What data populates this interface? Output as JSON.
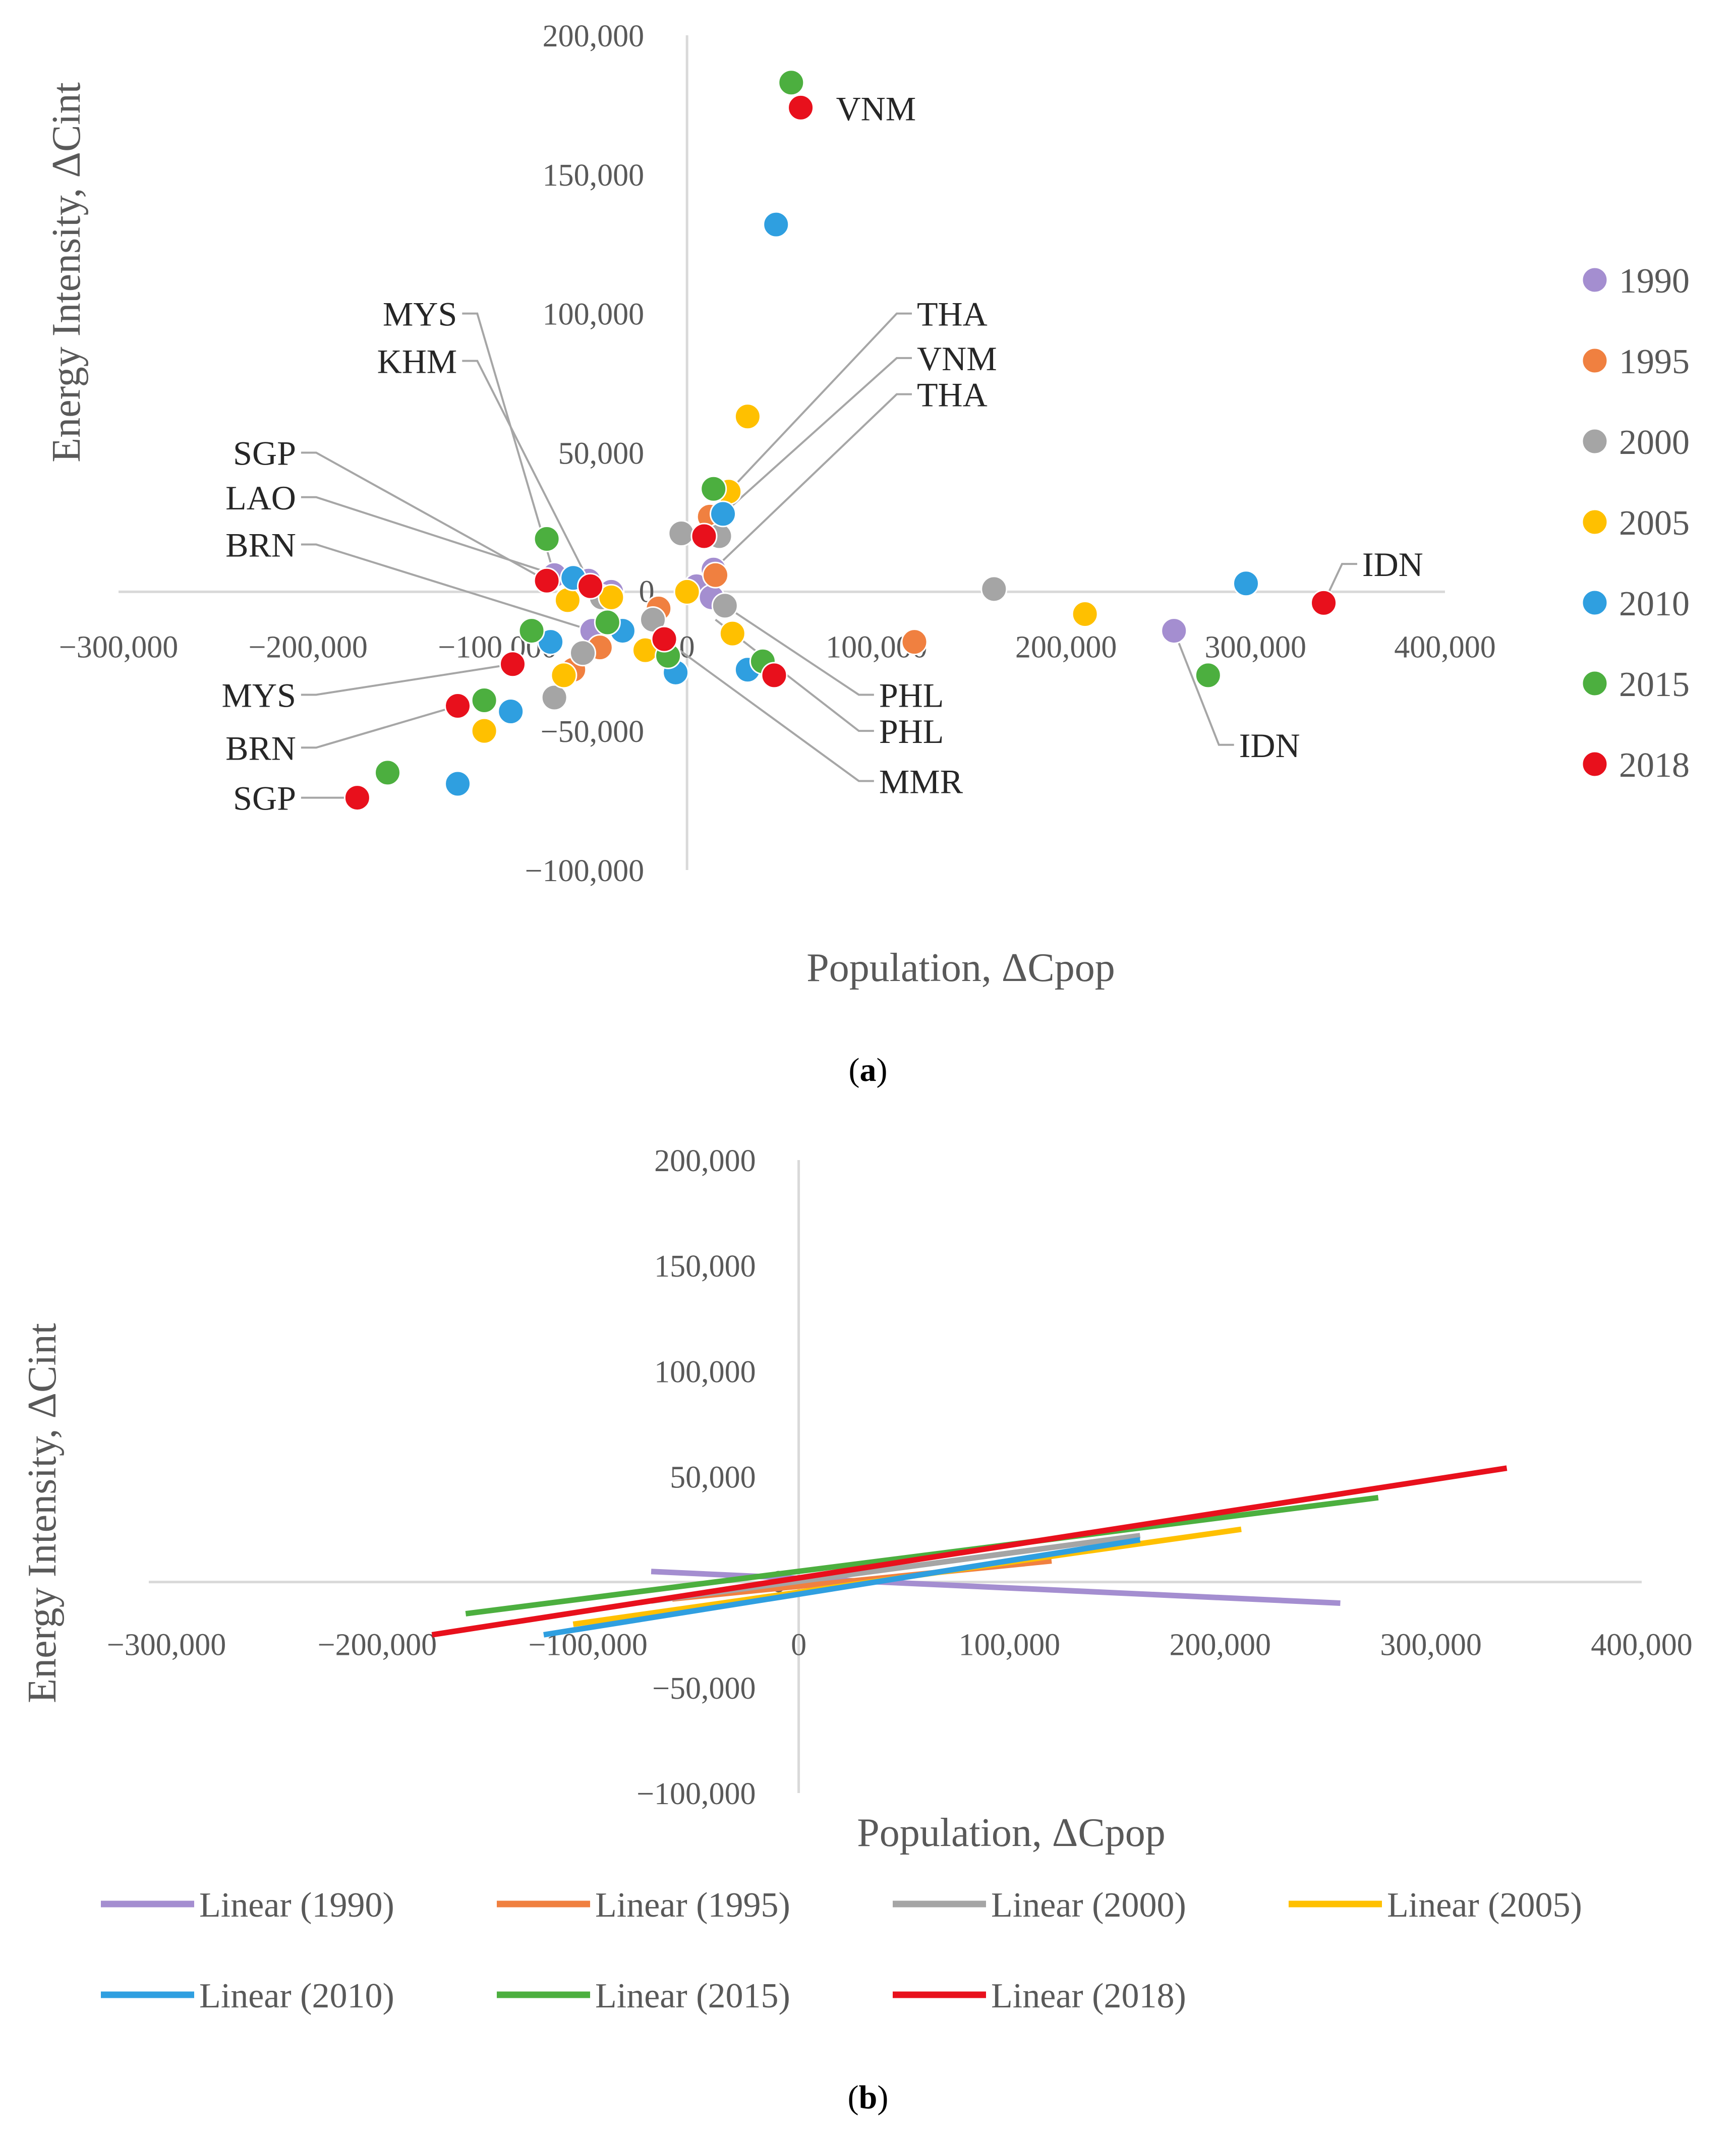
{
  "colors": {
    "1990": "#a48ed0",
    "1995": "#f08040",
    "2000": "#a5a5a5",
    "2005": "#ffc000",
    "2010": "#2f9fe0",
    "2015": "#4caf3f",
    "2018": "#e8101c",
    "axis": "#d9d9d9",
    "leader": "#a6a6a6"
  },
  "chart_data": [
    {
      "type": "scatter",
      "panel_label": "a",
      "xlabel": "Population, ΔCpop",
      "ylabel": "Energy Intensity, ΔCint",
      "xlim": [
        -300000,
        400000
      ],
      "ylim": [
        -100000,
        200000
      ],
      "x_ticks": [
        {
          "value": -300000,
          "label": "−300,000"
        },
        {
          "value": -200000,
          "label": "−200,000"
        },
        {
          "value": -100000,
          "label": "−100,000"
        },
        {
          "value": 0,
          "label": "0"
        },
        {
          "value": 100000,
          "label": "100,000"
        },
        {
          "value": 200000,
          "label": "200,000"
        },
        {
          "value": 300000,
          "label": "300,000"
        },
        {
          "value": 400000,
          "label": "400,000"
        }
      ],
      "y_ticks": [
        {
          "value": 200000,
          "label": "200,000"
        },
        {
          "value": 150000,
          "label": "150,000"
        },
        {
          "value": 100000,
          "label": "100,000"
        },
        {
          "value": 50000,
          "label": "50,000"
        },
        {
          "value": 0,
          "label": "0"
        },
        {
          "value": -50000,
          "label": "−50,000"
        },
        {
          "value": -100000,
          "label": "−100,000"
        }
      ],
      "legend": [
        "1990",
        "1995",
        "2000",
        "2005",
        "2010",
        "2015",
        "2018"
      ],
      "series": [
        {
          "name": "1990",
          "points": [
            [
              -70000,
              6000
            ],
            [
              -52000,
              4000
            ],
            [
              -40000,
              0
            ],
            [
              -50000,
              -14000
            ],
            [
              5000,
              2000
            ],
            [
              13000,
              -2000
            ],
            [
              14000,
              8000
            ],
            [
              257000,
              -14000
            ]
          ]
        },
        {
          "name": "1995",
          "points": [
            [
              -60000,
              -28000
            ],
            [
              -46000,
              -20000
            ],
            [
              -15000,
              -6000
            ],
            [
              12000,
              27000
            ],
            [
              15000,
              6000
            ],
            [
              120000,
              -18000
            ]
          ]
        },
        {
          "name": "2000",
          "points": [
            [
              -55000,
              -22000
            ],
            [
              -70000,
              -38000
            ],
            [
              -45000,
              -2000
            ],
            [
              -18000,
              -10000
            ],
            [
              -3000,
              21000
            ],
            [
              17000,
              20000
            ],
            [
              20000,
              -5000
            ],
            [
              162000,
              1000
            ]
          ]
        },
        {
          "name": "2005",
          "points": [
            [
              -63000,
              -3000
            ],
            [
              -65000,
              -30000
            ],
            [
              -107000,
              -50000
            ],
            [
              -40000,
              -2000
            ],
            [
              -22000,
              -21000
            ],
            [
              0,
              0
            ],
            [
              24000,
              -15000
            ],
            [
              32000,
              63000
            ],
            [
              22000,
              36000
            ],
            [
              210000,
              -8000
            ]
          ]
        },
        {
          "name": "2010",
          "points": [
            [
              -60000,
              5000
            ],
            [
              -72000,
              -18000
            ],
            [
              -34000,
              -14000
            ],
            [
              -6000,
              -29000
            ],
            [
              32000,
              -28000
            ],
            [
              19000,
              28000
            ],
            [
              -93000,
              -43000
            ],
            [
              -121000,
              -69000
            ],
            [
              47000,
              132000
            ],
            [
              295000,
              3000
            ]
          ]
        },
        {
          "name": "2015",
          "points": [
            [
              -74000,
              19000
            ],
            [
              -82000,
              -14000
            ],
            [
              -42000,
              -11000
            ],
            [
              -10000,
              -23000
            ],
            [
              40000,
              -25000
            ],
            [
              14000,
              37000
            ],
            [
              -107000,
              -39000
            ],
            [
              -158000,
              -65000
            ],
            [
              55000,
              183000
            ],
            [
              275000,
              -30000
            ]
          ]
        },
        {
          "name": "2018",
          "points": [
            [
              -74000,
              4000
            ],
            [
              -51000,
              2000
            ],
            [
              -12000,
              -17000
            ],
            [
              46000,
              -30000
            ],
            [
              9000,
              20000
            ],
            [
              -92000,
              -26000
            ],
            [
              -121000,
              -41000
            ],
            [
              -174000,
              -74000
            ],
            [
              60000,
              174000
            ],
            [
              336000,
              -4000
            ]
          ]
        }
      ],
      "annotations": [
        {
          "text": "VNM",
          "x": 60000,
          "y": 174000,
          "side": "right"
        },
        {
          "text": "IDN",
          "x": 336000,
          "y": -4000,
          "side": "right-up",
          "label_at": [
            355000,
            10000
          ]
        },
        {
          "text": "IDN",
          "x": 257000,
          "y": -14000,
          "side": "right-down",
          "label_at": [
            290000,
            -55000
          ]
        },
        {
          "text": "MYS",
          "x": -70000,
          "y": 6000,
          "side": "left-up",
          "label_at": [
            -120000,
            100000
          ]
        },
        {
          "text": "KHM",
          "x": -52000,
          "y": 4000,
          "side": "left-up",
          "label_at": [
            -120000,
            83000
          ]
        },
        {
          "text": "SGP",
          "x": -74000,
          "y": 4000,
          "side": "left-up",
          "label_at": [
            -205000,
            50000
          ]
        },
        {
          "text": "LAO",
          "x": -51000,
          "y": 2000,
          "side": "left-up",
          "label_at": [
            -205000,
            34000
          ]
        },
        {
          "text": "BRN",
          "x": -50000,
          "y": -14000,
          "side": "left-up",
          "label_at": [
            -205000,
            17000
          ]
        },
        {
          "text": "MYS",
          "x": -92000,
          "y": -26000,
          "side": "left-down",
          "label_at": [
            -205000,
            -37000
          ]
        },
        {
          "text": "BRN",
          "x": -121000,
          "y": -41000,
          "side": "left-down",
          "label_at": [
            -205000,
            -56000
          ]
        },
        {
          "text": "SGP",
          "x": -174000,
          "y": -74000,
          "side": "left",
          "label_at": [
            -205000,
            -74000
          ]
        },
        {
          "text": "THA",
          "x": 22000,
          "y": 36000,
          "side": "right-up",
          "label_at": [
            120000,
            100000
          ]
        },
        {
          "text": "VNM",
          "x": 19000,
          "y": 28000,
          "side": "right-up",
          "label_at": [
            120000,
            84000
          ]
        },
        {
          "text": "THA",
          "x": 14000,
          "y": 8000,
          "side": "right-up",
          "label_at": [
            120000,
            71000
          ]
        },
        {
          "text": "PHL",
          "x": 20000,
          "y": -5000,
          "side": "right-down",
          "label_at": [
            100000,
            -37000
          ]
        },
        {
          "text": "PHL",
          "x": 15000,
          "y": -10000,
          "side": "right-down",
          "label_at": [
            100000,
            -50000
          ]
        },
        {
          "text": "MMR",
          "x": -12000,
          "y": -17000,
          "side": "right-down",
          "label_at": [
            100000,
            -68000
          ]
        }
      ]
    },
    {
      "type": "line",
      "panel_label": "b",
      "xlabel": "Population, ΔCpop",
      "ylabel": "Energy Intensity, ΔCint",
      "xlim": [
        -300000,
        400000
      ],
      "ylim": [
        -100000,
        200000
      ],
      "x_ticks": [
        {
          "value": -300000,
          "label": "−300,000"
        },
        {
          "value": -200000,
          "label": "−200,000"
        },
        {
          "value": -100000,
          "label": "−100,000"
        },
        {
          "value": 0,
          "label": "0"
        },
        {
          "value": 100000,
          "label": "100,000"
        },
        {
          "value": 200000,
          "label": "200,000"
        },
        {
          "value": 300000,
          "label": "300,000"
        },
        {
          "value": 400000,
          "label": "400,000"
        }
      ],
      "y_ticks": [
        {
          "value": 200000,
          "label": "200,000"
        },
        {
          "value": 150000,
          "label": "150,000"
        },
        {
          "value": 100000,
          "label": "100,000"
        },
        {
          "value": 50000,
          "label": "50,000"
        },
        {
          "value": 0,
          "label": "0"
        },
        {
          "value": -50000,
          "label": "−50,000"
        },
        {
          "value": -100000,
          "label": "−100,000"
        }
      ],
      "series": [
        {
          "name": "Linear (1990)",
          "color_key": "1990",
          "x": [
            -70000,
            257000
          ],
          "y": [
            5000,
            -10000
          ]
        },
        {
          "name": "Linear (1995)",
          "color_key": "1995",
          "x": [
            -60000,
            120000
          ],
          "y": [
            -8000,
            10000
          ]
        },
        {
          "name": "Linear (2000)",
          "color_key": "2000",
          "x": [
            -70000,
            162000
          ],
          "y": [
            -9000,
            22000
          ]
        },
        {
          "name": "Linear (2005)",
          "color_key": "2005",
          "x": [
            -107000,
            210000
          ],
          "y": [
            -20000,
            25000
          ]
        },
        {
          "name": "Linear (2010)",
          "color_key": "2010",
          "x": [
            -121000,
            162000
          ],
          "y": [
            -25000,
            20000
          ]
        },
        {
          "name": "Linear (2015)",
          "color_key": "2015",
          "x": [
            -158000,
            275000
          ],
          "y": [
            -15000,
            40000
          ]
        },
        {
          "name": "Linear (2018)",
          "color_key": "2018",
          "x": [
            -174000,
            336000
          ],
          "y": [
            -25000,
            54000
          ]
        }
      ]
    }
  ]
}
